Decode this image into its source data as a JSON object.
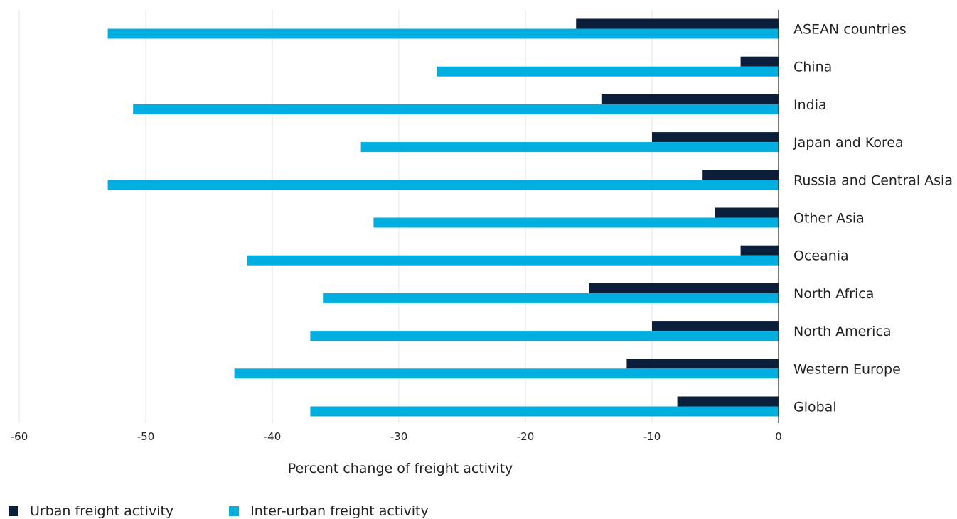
{
  "chart_data": {
    "type": "bar",
    "orientation": "horizontal",
    "xlabel": "Percent change of freight activity",
    "xlim": [
      -60,
      0
    ],
    "xticks": [
      -60,
      -50,
      -40,
      -30,
      -20,
      -10,
      0
    ],
    "grid": true,
    "legend_position": "bottom-left",
    "categories": [
      "ASEAN countries",
      "China",
      "India",
      "Japan and Korea",
      "Russia and Central Asia",
      "Other Asia",
      "Oceania",
      "North Africa",
      "North America",
      "Western Europe",
      "Global"
    ],
    "series": [
      {
        "name": "Urban freight activity",
        "color": "#0b1e3a",
        "values": [
          -16,
          -3,
          -14,
          -10,
          -6,
          -5,
          -3,
          -15,
          -10,
          -12,
          -8
        ]
      },
      {
        "name": "Inter-urban freight activity",
        "color": "#00aee0",
        "values": [
          -53,
          -27,
          -51,
          -33,
          -53,
          -32,
          -42,
          -36,
          -37,
          -43,
          -37
        ]
      }
    ]
  }
}
